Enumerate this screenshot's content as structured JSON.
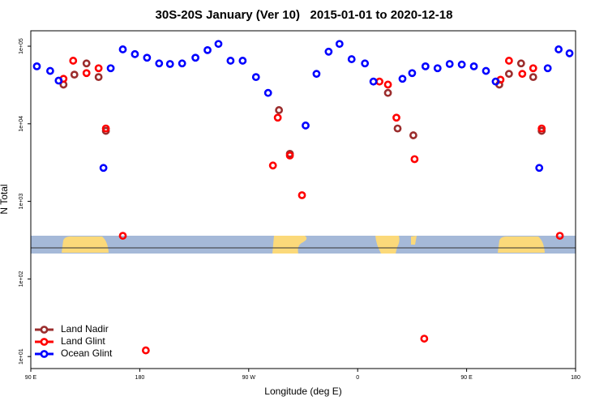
{
  "chart_data": {
    "type": "scatter",
    "title": "30S-20S January (Ver 10)   2015-01-01 to 2020-12-18",
    "xlabel": "Longitude (deg E)",
    "ylabel": "N Total",
    "xlim": [
      90,
      540
    ],
    "xticks": [
      {
        "value": 90,
        "label": "90 E"
      },
      {
        "value": 180,
        "label": "180"
      },
      {
        "value": 270,
        "label": "90 W"
      },
      {
        "value": 360,
        "label": "0"
      },
      {
        "value": 450,
        "label": "90 E"
      },
      {
        "value": 540,
        "label": "180"
      }
    ],
    "ylim": [
      7,
      158000
    ],
    "log_y": true,
    "yticks": [
      {
        "value": 10,
        "label": "1e+01"
      },
      {
        "value": 100,
        "label": "1e+02"
      },
      {
        "value": 1000,
        "label": "1e+03"
      },
      {
        "value": 10000,
        "label": "1e+04"
      },
      {
        "value": 100000,
        "label": "1e+05"
      }
    ],
    "legend": "lower left",
    "series": [
      {
        "name": "Land Nadir",
        "color": "#9b2d2d",
        "x": [
          117,
          126,
          136,
          146,
          152,
          295,
          304,
          385,
          393,
          406,
          477,
          485,
          495,
          505,
          512
        ],
        "values": [
          32000,
          43000,
          60000,
          40000,
          8100,
          15000,
          4100,
          25000,
          8700,
          7100,
          32000,
          44000,
          60000,
          40000,
          8100
        ]
      },
      {
        "name": "Land Glint",
        "color": "#ff0000",
        "x": [
          117,
          125,
          136,
          146,
          152,
          166,
          185,
          290,
          294,
          304,
          314,
          378,
          385,
          392,
          407,
          415,
          478,
          485,
          496,
          505,
          512,
          527
        ],
        "values": [
          38000,
          65000,
          45000,
          52000,
          8700,
          360,
          12,
          2900,
          12000,
          3900,
          1200,
          35000,
          32000,
          12000,
          3500,
          17,
          37000,
          65000,
          44000,
          52000,
          8700,
          360
        ]
      },
      {
        "name": "Ocean Glint",
        "color": "#0000ff",
        "x": [
          95,
          106,
          113,
          150,
          156,
          166,
          176,
          186,
          196,
          205,
          215,
          226,
          236,
          245,
          255,
          265,
          276,
          286,
          317,
          326,
          336,
          345,
          355,
          366,
          373,
          397,
          405,
          416,
          426,
          436,
          446,
          456,
          466,
          474,
          510,
          517,
          526,
          535
        ],
        "values": [
          55000,
          48000,
          36000,
          2700,
          52000,
          91000,
          79000,
          71000,
          60000,
          59000,
          60000,
          71000,
          89000,
          107000,
          65000,
          65000,
          40000,
          25000,
          9500,
          44000,
          85000,
          107000,
          68000,
          60000,
          35000,
          38000,
          45000,
          55000,
          52000,
          59000,
          58000,
          55000,
          48000,
          35000,
          2700,
          52000,
          91000,
          81000
        ]
      }
    ]
  }
}
